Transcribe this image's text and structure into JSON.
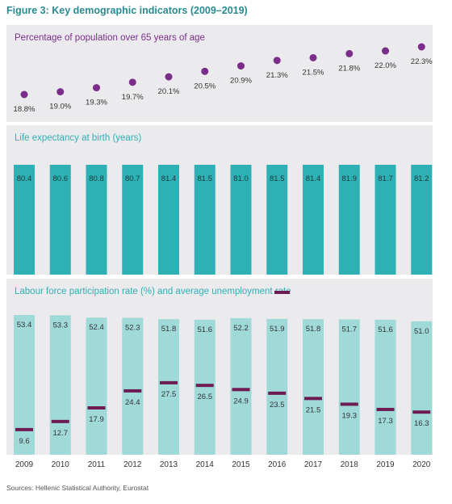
{
  "figure_title": "Figure 3: Key demographic indicators (2009–2019)",
  "source": "Sources: Hellenic Statistical Authority, Eurostat",
  "colors": {
    "title": "#2a8a8f",
    "dot": "#7b2d8a",
    "life_bar": "#2eb0b4",
    "labour_bar": "#9fd9d8",
    "unemployment_mark": "#6c1c53"
  },
  "chart_data": [
    {
      "type": "scatter",
      "title": "Percentage of population over 65 years of age",
      "x": [
        "2009",
        "2010",
        "2011",
        "2012",
        "2013",
        "2014",
        "2015",
        "2016",
        "2017",
        "2018",
        "2019",
        "2020"
      ],
      "values": [
        18.8,
        19.0,
        19.3,
        19.7,
        20.1,
        20.5,
        20.9,
        21.3,
        21.5,
        21.8,
        22.0,
        22.3
      ],
      "labels": [
        "18.8%",
        "19.0%",
        "19.3%",
        "19.7%",
        "20.1%",
        "20.5%",
        "20.9%",
        "21.3%",
        "21.5%",
        "21.8%",
        "22.0%",
        "22.3%"
      ]
    },
    {
      "type": "bar",
      "title": "Life expectancy at birth (years)",
      "categories": [
        "2009",
        "2010",
        "2011",
        "2012",
        "2013",
        "2014",
        "2015",
        "2016",
        "2017",
        "2018",
        "2019",
        "2020"
      ],
      "values": [
        80.4,
        80.6,
        80.8,
        80.7,
        81.4,
        81.5,
        81.0,
        81.5,
        81.4,
        81.9,
        81.7,
        81.2
      ],
      "labels": [
        "80.4",
        "80.6",
        "80.8",
        "80.7",
        "81.4",
        "81.5",
        "81.0",
        "81.5",
        "81.4",
        "81.9",
        "81.7",
        "81.2"
      ]
    },
    {
      "type": "bar",
      "title": "Labour force participation rate (%) and average unemployment rate",
      "categories": [
        "2009",
        "2010",
        "2011",
        "2012",
        "2013",
        "2014",
        "2015",
        "2016",
        "2017",
        "2018",
        "2019",
        "2020"
      ],
      "series": [
        {
          "values": [
            53.4,
            53.3,
            52.4,
            52.3,
            51.8,
            51.6,
            52.2,
            51.9,
            51.8,
            51.7,
            51.6,
            51.0
          ],
          "labels": [
            "53.4",
            "53.3",
            "52.4",
            "52.3",
            "51.8",
            "51.6",
            "52.2",
            "51.9",
            "51.8",
            "51.7",
            "51.6",
            "51.0"
          ]
        },
        {
          "values": [
            9.6,
            12.7,
            17.9,
            24.4,
            27.5,
            26.5,
            24.9,
            23.5,
            21.5,
            19.3,
            17.3,
            16.3
          ],
          "labels": [
            "9.6",
            "12.7",
            "17.9",
            "24.4",
            "27.5",
            "26.5",
            "24.9",
            "23.5",
            "21.5",
            "19.3",
            "17.3",
            "16.3"
          ]
        }
      ],
      "ylim": [
        0,
        60
      ]
    }
  ]
}
